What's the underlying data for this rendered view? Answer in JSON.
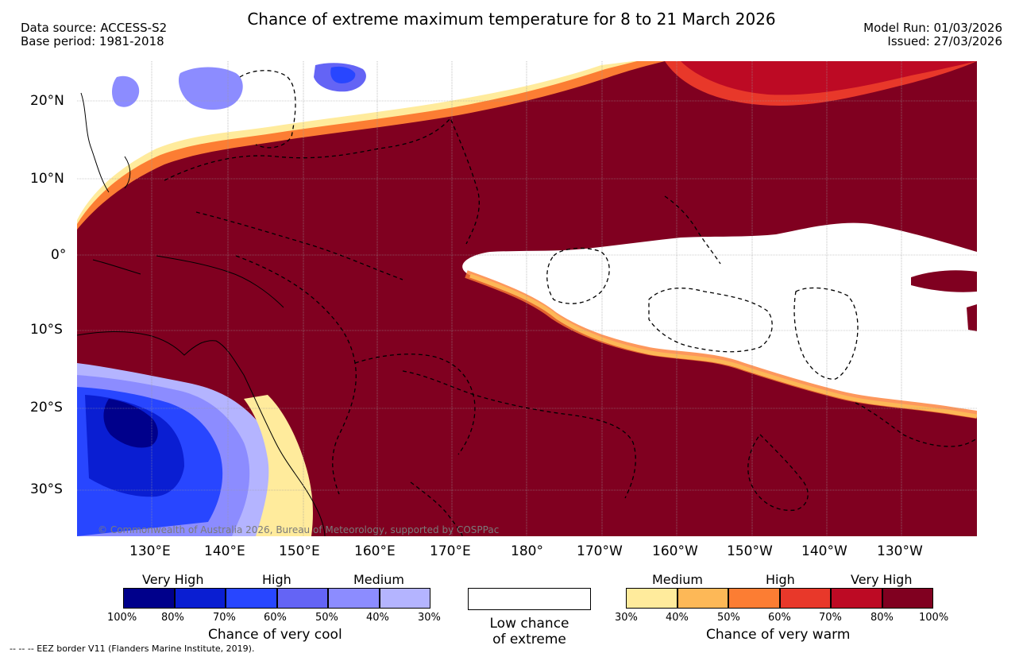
{
  "header": {
    "data_source": "Data source: ACCESS-S2",
    "base_period": "Base period: 1981-2018",
    "title": "Chance of extreme maximum temperature for 8 to 21 March 2026",
    "model_run": "Model Run: 01/03/2026",
    "issued": "Issued: 27/03/2026"
  },
  "map": {
    "lat_labels": [
      "20°N",
      "10°N",
      "0°",
      "10°S",
      "20°S",
      "30°S"
    ],
    "lon_labels": [
      "130°E",
      "140°E",
      "150°E",
      "160°E",
      "170°E",
      "180°",
      "170°W",
      "160°W",
      "150°W",
      "140°W",
      "130°W"
    ],
    "copyright": "© Commonwealth of Australia 2026, Bureau of Meteorology, supported by COSPPac"
  },
  "legend": {
    "cool": {
      "categories": [
        "Very High",
        "High",
        "Medium"
      ],
      "ticks": [
        "100%",
        "80%",
        "70%",
        "60%",
        "50%",
        "40%",
        "30%"
      ],
      "title": "Chance of very cool",
      "colors": [
        "#00008b",
        "#0a1ed2",
        "#2846ff",
        "#6464f5",
        "#8c8cff",
        "#b4b4ff"
      ]
    },
    "low": {
      "line1": "Low chance",
      "line2": "of extreme"
    },
    "warm": {
      "categories": [
        "Medium",
        "High",
        "Very High"
      ],
      "ticks": [
        "30%",
        "40%",
        "50%",
        "60%",
        "70%",
        "80%",
        "100%"
      ],
      "title": "Chance of very warm",
      "colors": [
        "#ffeb9c",
        "#fdb857",
        "#fc7d33",
        "#e8382a",
        "#bd0a24",
        "#800020"
      ]
    }
  },
  "footer": {
    "eez_note": "-- -- -- EEZ border V11 (Flanders Marine Institute, 2019)."
  }
}
